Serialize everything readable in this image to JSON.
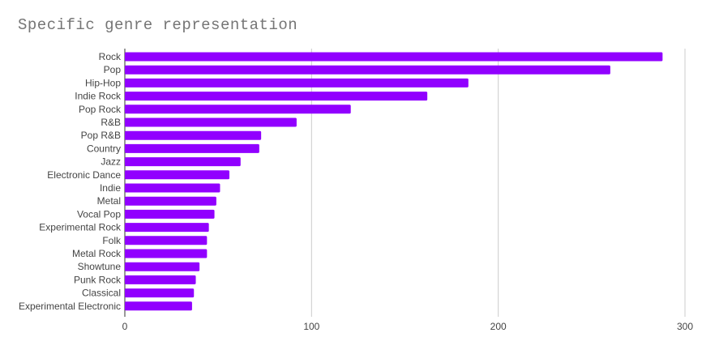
{
  "chart_data": {
    "type": "bar",
    "orientation": "horizontal",
    "title": "Specific genre representation",
    "xlabel": "",
    "ylabel": "",
    "categories": [
      "Rock",
      "Pop",
      "Hip-Hop",
      "Indie Rock",
      "Pop Rock",
      "R&B",
      "Pop R&B",
      "Country",
      "Jazz",
      "Electronic Dance",
      "Indie",
      "Metal",
      "Vocal Pop",
      "Experimental Rock",
      "Folk",
      "Metal Rock",
      "Showtune",
      "Punk Rock",
      "Classical",
      "Experimental Electronic"
    ],
    "values": [
      288,
      260,
      184,
      162,
      121,
      92,
      73,
      72,
      62,
      56,
      51,
      49,
      48,
      45,
      44,
      44,
      40,
      38,
      37,
      36
    ],
    "xlim": [
      0,
      300
    ],
    "xticks": [
      0,
      100,
      200,
      300
    ],
    "grid": "vertical",
    "legend": "none",
    "bar_color": "#9100ff"
  }
}
